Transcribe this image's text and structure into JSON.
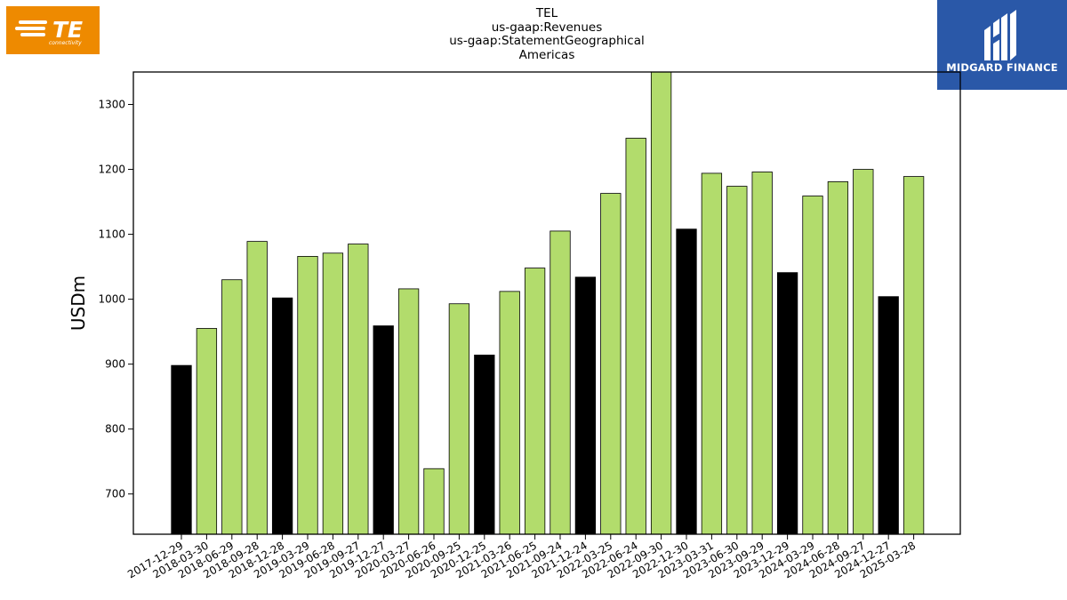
{
  "logos": {
    "left_brand": "TE",
    "left_tagline": "connectivity",
    "left_color": "#ee8a00",
    "right_brand": "MIDGARD FINANCE",
    "right_color": "#2a58a8"
  },
  "chart_data": {
    "type": "bar",
    "title_lines": [
      "TEL",
      "us-gaap:Revenues",
      "us-gaap:StatementGeographical",
      "Americas"
    ],
    "xlabel": "",
    "ylabel": "USDm",
    "ylim": [
      638,
      1350
    ],
    "yticks": [
      700,
      800,
      900,
      1000,
      1100,
      1200,
      1300
    ],
    "grid": false,
    "colors": {
      "q4": "#000000",
      "other": "#b2dc6c",
      "edge": "#000000"
    },
    "categories": [
      "2017-12-29",
      "2018-03-30",
      "2018-06-29",
      "2018-09-28",
      "2018-12-28",
      "2019-03-29",
      "2019-06-28",
      "2019-09-27",
      "2019-12-27",
      "2020-03-27",
      "2020-06-26",
      "2020-09-25",
      "2020-12-25",
      "2021-03-26",
      "2021-06-25",
      "2021-09-24",
      "2021-12-24",
      "2022-03-25",
      "2022-06-24",
      "2022-09-30",
      "2022-12-30",
      "2023-03-31",
      "2023-06-30",
      "2023-09-29",
      "2023-12-29",
      "2024-03-29",
      "2024-06-28",
      "2024-09-27",
      "2024-12-27",
      "2025-03-28"
    ],
    "values": [
      898,
      955,
      1030,
      1089,
      1002,
      1066,
      1071,
      1085,
      959,
      1016,
      739,
      993,
      914,
      1012,
      1048,
      1105,
      1034,
      1163,
      1248,
      1352,
      1108,
      1194,
      1174,
      1196,
      1041,
      1159,
      1181,
      1200,
      1004,
      1189
    ],
    "highlight": [
      "q4",
      "other",
      "other",
      "other",
      "q4",
      "other",
      "other",
      "other",
      "q4",
      "other",
      "other",
      "other",
      "q4",
      "other",
      "other",
      "other",
      "q4",
      "other",
      "other",
      "other",
      "q4",
      "other",
      "other",
      "other",
      "q4",
      "other",
      "other",
      "other",
      "q4",
      "other"
    ]
  }
}
